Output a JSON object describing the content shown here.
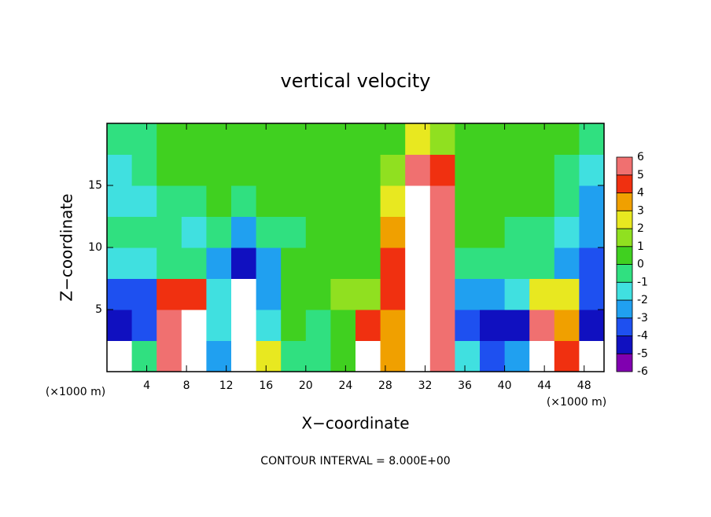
{
  "chart_data": {
    "type": "heatmap",
    "title": "vertical velocity",
    "xlabel": "X−coordinate",
    "ylabel": "Z−coordinate",
    "x_unit": "(×1000 m)",
    "note": "CONTOUR INTERVAL = 8.000E+00",
    "xlim": [
      0,
      50
    ],
    "ylim": [
      0,
      20
    ],
    "xticks": [
      4,
      8,
      12,
      16,
      20,
      24,
      28,
      32,
      36,
      40,
      44,
      48
    ],
    "yticks": [
      5,
      10,
      15
    ],
    "x": [
      1.25,
      3.75,
      6.25,
      8.75,
      11.25,
      13.75,
      16.25,
      18.75,
      21.25,
      23.75,
      26.25,
      28.75,
      31.25,
      33.75,
      36.25,
      38.75,
      41.25,
      43.75,
      46.25,
      48.75
    ],
    "y": [
      1.25,
      3.75,
      6.25,
      8.75,
      11.25,
      13.75,
      16.25,
      18.75
    ],
    "z": [
      [
        -7,
        -1,
        5,
        7,
        -3,
        -7,
        2,
        -1,
        -1,
        0,
        7,
        3,
        7,
        6,
        -2,
        -4,
        -3,
        7,
        4,
        -7
      ],
      [
        -5,
        -4,
        5,
        7,
        -2,
        -7,
        -2,
        0,
        -1,
        0,
        4,
        3,
        8,
        6,
        -4,
        -5,
        -5,
        5,
        3,
        -5
      ],
      [
        -4,
        -4,
        4,
        4,
        -2,
        -7,
        -3,
        0,
        0,
        1,
        1,
        4,
        8,
        6,
        -3,
        -3,
        -2,
        2,
        2,
        -4
      ],
      [
        -2,
        -2,
        -1,
        -1,
        -3,
        -5,
        -3,
        0,
        0,
        0,
        0,
        4,
        8,
        5,
        -1,
        -1,
        -1,
        -1,
        -3,
        -4
      ],
      [
        -1,
        -1,
        -1,
        -2,
        -1,
        -3,
        -1,
        -1,
        0,
        0,
        0,
        3,
        8,
        5,
        0,
        0,
        -1,
        -1,
        -2,
        -3
      ],
      [
        -2,
        -2,
        -1,
        -1,
        0,
        -1,
        0,
        0,
        0,
        0,
        0,
        2,
        7,
        6,
        0,
        0,
        0,
        0,
        -1,
        -3
      ],
      [
        -2,
        -1,
        0,
        0,
        0,
        0,
        0,
        0,
        0,
        0,
        0,
        1,
        5,
        4,
        0,
        0,
        0,
        0,
        -1,
        -2
      ],
      [
        -1,
        -1,
        0,
        0,
        0,
        0,
        0,
        0,
        0,
        0,
        0,
        0,
        2,
        1,
        0,
        0,
        0,
        0,
        0,
        -1
      ]
    ],
    "colorbar_levels": [
      -6,
      -5,
      -4,
      -3,
      -2,
      -1,
      0,
      1,
      2,
      3,
      4,
      5,
      6
    ],
    "colors": [
      "#8000b0",
      "#1010c0",
      "#1e50f0",
      "#20a0f0",
      "#40e0e0",
      "#30e080",
      "#40d020",
      "#90e020",
      "#e8e820",
      "#f0a000",
      "#f03010",
      "#f07070"
    ],
    "out_of_range_color": "#ffffff"
  }
}
